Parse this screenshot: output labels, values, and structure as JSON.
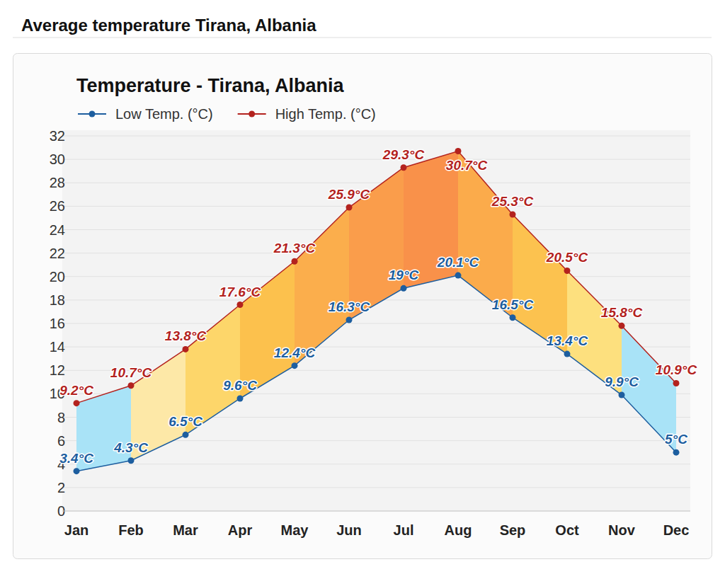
{
  "header": {
    "title": "Average temperature Tirana, Albania"
  },
  "chart_data": {
    "type": "line",
    "title": "Temperature - Tirana, Albania",
    "categories": [
      "Jan",
      "Feb",
      "Mar",
      "Apr",
      "May",
      "Jun",
      "Jul",
      "Aug",
      "Sep",
      "Oct",
      "Nov",
      "Dec"
    ],
    "series": [
      {
        "name": "Low Temp. (°C)",
        "color": "#1d5e9f",
        "marker": "circle",
        "values": [
          3.4,
          4.3,
          6.5,
          9.6,
          12.4,
          16.3,
          19,
          20.1,
          16.5,
          13.4,
          9.9,
          5
        ],
        "value_labels": [
          "3.4°C",
          "4.3°C",
          "6.5°C",
          "9.6°C",
          "12.4°C",
          "16.3°C",
          "19°C",
          "20.1°C",
          "16.5°C",
          "13.4°C",
          "9.9°C",
          "5°C"
        ]
      },
      {
        "name": "High Temp. (°C)",
        "color": "#b3221e",
        "marker": "circle",
        "values": [
          9.2,
          10.7,
          13.8,
          17.6,
          21.3,
          25.9,
          29.3,
          30.7,
          25.3,
          20.5,
          15.8,
          10.9
        ],
        "value_labels": [
          "9.2°C",
          "10.7°C",
          "13.8°C",
          "17.6°C",
          "21.3°C",
          "25.9°C",
          "29.3°C",
          "30.7°C",
          "25.3°C",
          "20.5°C",
          "15.8°C",
          "10.9°C"
        ]
      }
    ],
    "ylim": [
      0,
      32
    ],
    "yticks": [
      0,
      2,
      4,
      6,
      8,
      10,
      12,
      14,
      16,
      18,
      20,
      22,
      24,
      26,
      28,
      30,
      32
    ],
    "grid": true,
    "legend": "top",
    "data_labels": true
  }
}
